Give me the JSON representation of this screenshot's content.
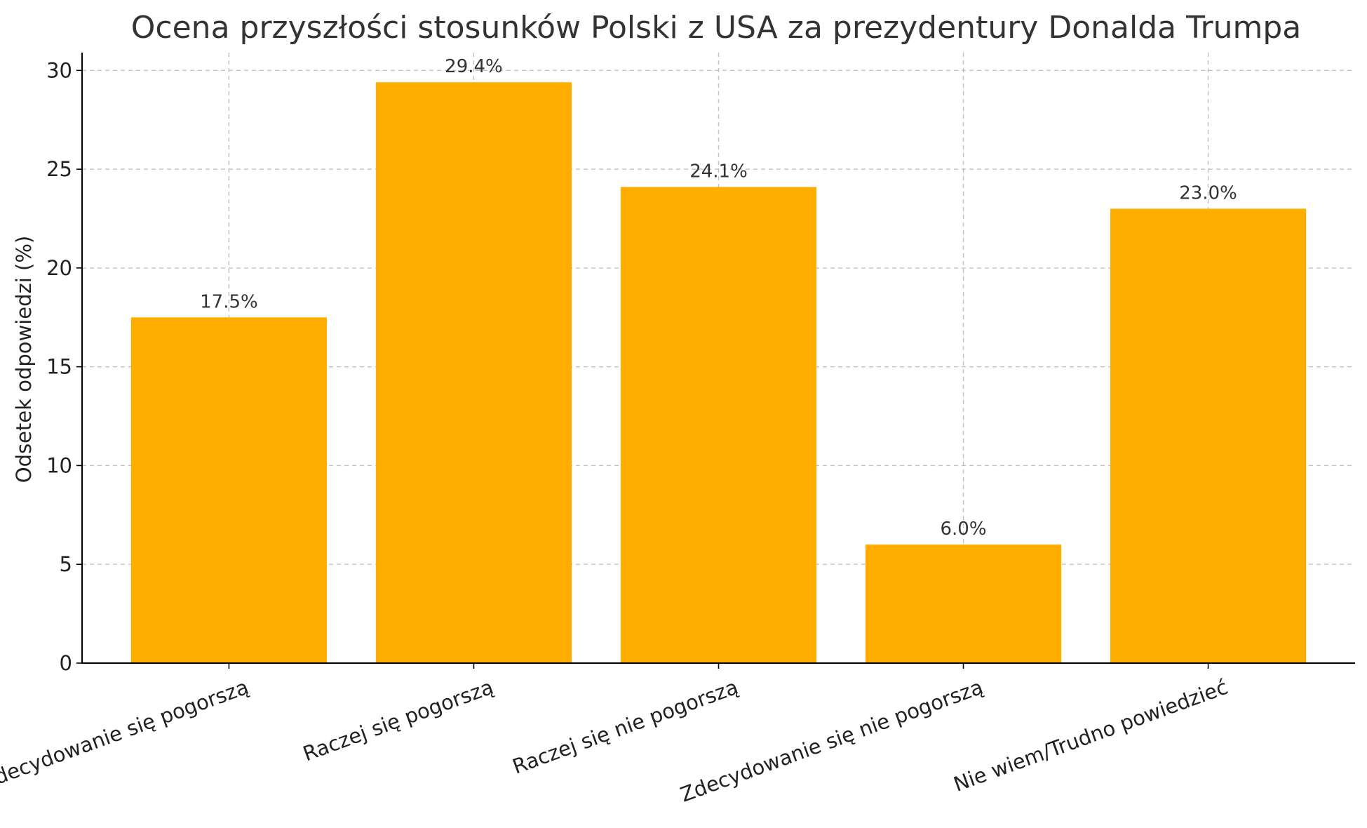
{
  "chart_data": {
    "type": "bar",
    "title": "Ocena przyszłości stosunków Polski z USA za prezydentury Donalda Trumpa",
    "xlabel": "",
    "ylabel": "Odsetek odpowiedzi (%)",
    "categories": [
      "Zdecydowanie się pogorszą",
      "Raczej się pogorszą",
      "Raczej się nie pogorszą",
      "Zdecydowanie się nie pogorszą",
      "Nie wiem/Trudno powiedzieć"
    ],
    "values": [
      17.5,
      29.4,
      24.1,
      6.0,
      23.0
    ],
    "data_labels": [
      "17.5%",
      "29.4%",
      "24.1%",
      "6.0%",
      "23.0%"
    ],
    "yticks": [
      0,
      5,
      10,
      15,
      20,
      25,
      30
    ],
    "ylim": [
      0,
      30.9
    ],
    "grid": true,
    "bar_color": "#FFAE00"
  }
}
